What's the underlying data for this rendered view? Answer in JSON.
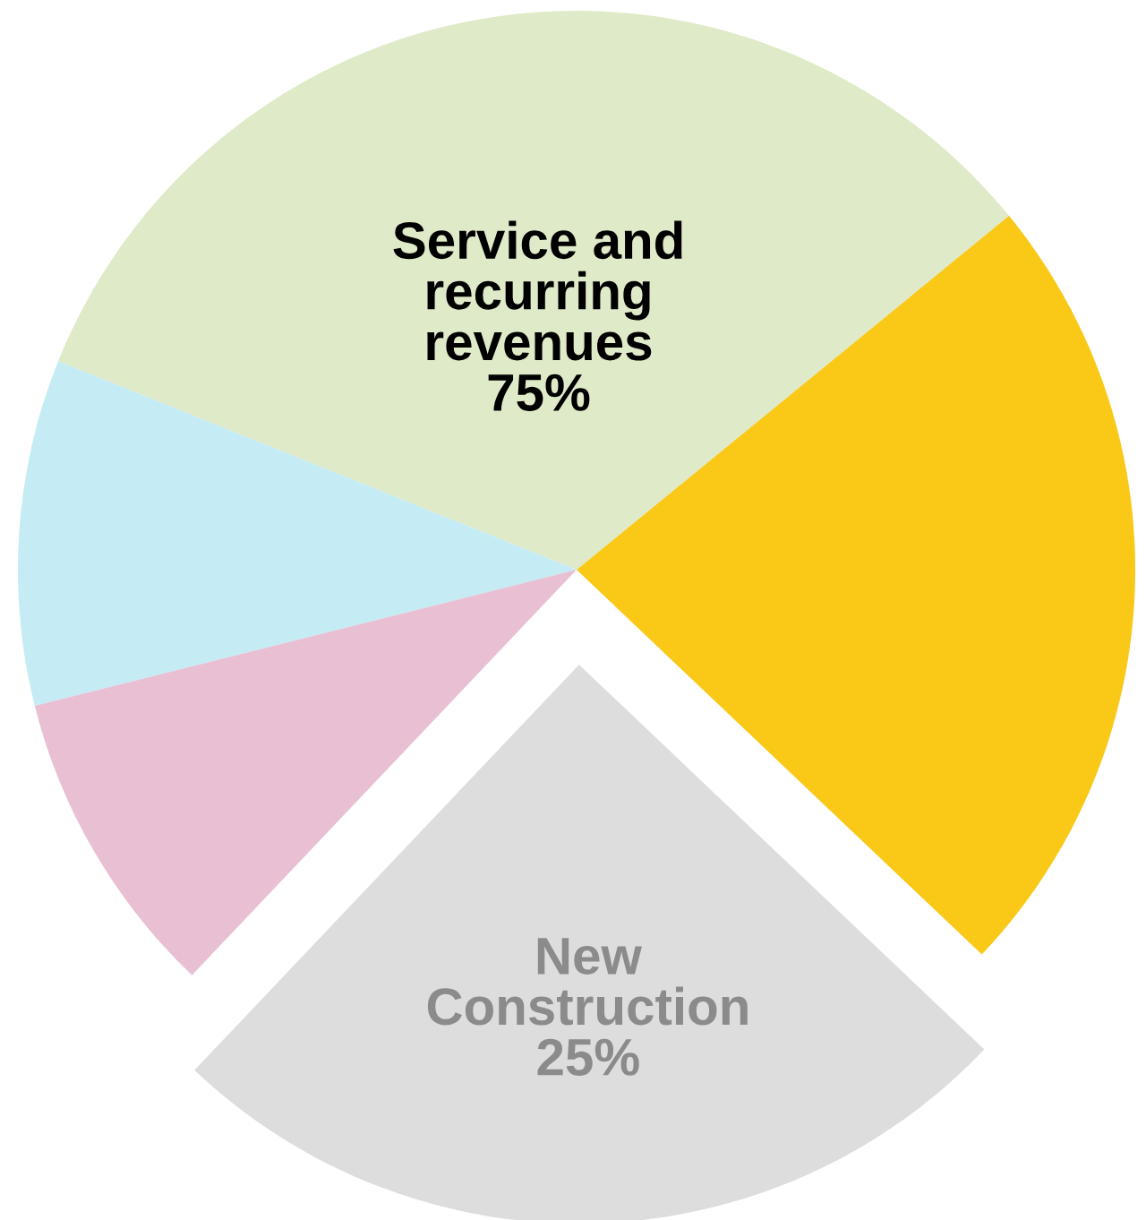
{
  "chart_data": {
    "type": "pie",
    "categories": [
      null,
      "Service and\nrecurring\nrevenues",
      null,
      null,
      "New\nConstruction"
    ],
    "values": [
      23,
      33,
      10,
      9,
      25
    ],
    "colors": [
      "#fac817",
      "#dfeac8",
      "#c5ebf5",
      "#e8bfd3",
      "#dddddd"
    ],
    "value_labels": [
      null,
      null,
      null,
      null,
      "25%"
    ],
    "annotations": [
      "75%"
    ],
    "legend": false
  }
}
